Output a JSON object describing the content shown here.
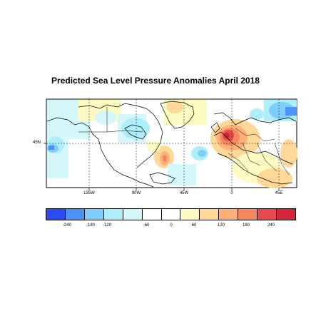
{
  "title": "Predicted Sea Level Pressure Anomalies April 2018",
  "map": {
    "lat_labels": [
      "45N"
    ],
    "lon_labels": [
      "135W",
      "90W",
      "45W",
      "0",
      "45E"
    ]
  },
  "colorbar": {
    "colors": [
      "#2a4cf5",
      "#4b93f6",
      "#7fcdfb",
      "#aeeefb",
      "#d4f8fa",
      "#ffffff",
      "#ffffff",
      "#fefbc2",
      "#fed898",
      "#fdb178",
      "#f48760",
      "#e64a4c",
      "#d3263a"
    ],
    "tick_labels": [
      "-240",
      "-180",
      "-120",
      "-60",
      "0",
      "60",
      "120",
      "180",
      "240"
    ]
  }
}
